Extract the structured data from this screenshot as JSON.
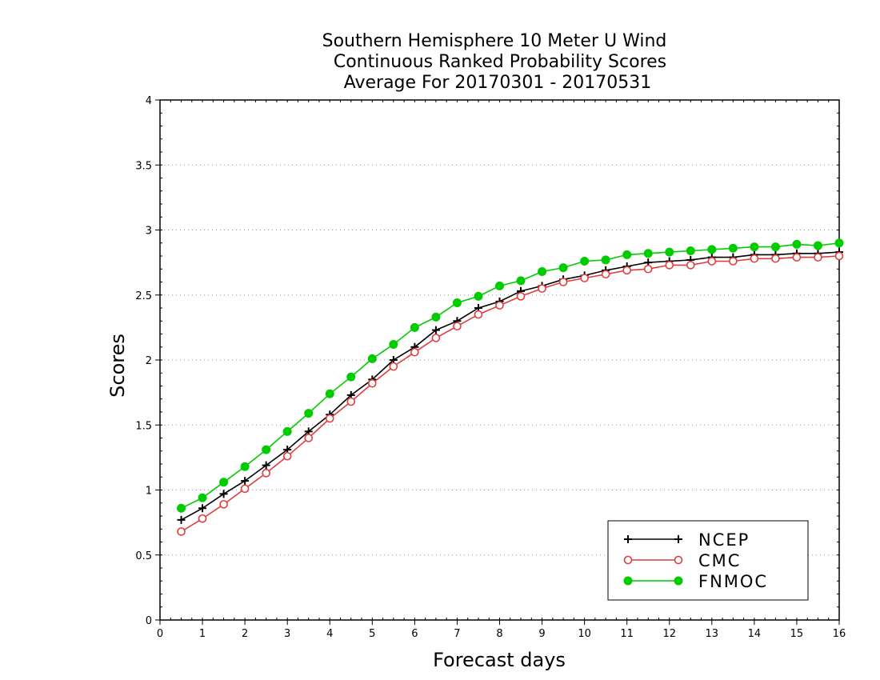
{
  "chart_data": {
    "type": "line",
    "title_lines": [
      "Southern Hemisphere 10 Meter U Wind",
      "Continuous Ranked Probability Scores",
      "Average For 20170301 - 20170531"
    ],
    "xlabel": "Forecast days",
    "ylabel": "Scores",
    "xlim": [
      0,
      16
    ],
    "ylim": [
      0,
      4
    ],
    "x_ticks": [
      "0",
      "1",
      "2",
      "3",
      "4",
      "5",
      "6",
      "7",
      "8",
      "9",
      "10",
      "11",
      "12",
      "13",
      "14",
      "15",
      "16"
    ],
    "y_ticks": [
      "0",
      "0.5",
      "1",
      "1.5",
      "2",
      "2.5",
      "3",
      "3.5",
      "4"
    ],
    "grid": "horizontal-dotted",
    "legend_position": "bottom-right",
    "x": [
      0.5,
      1,
      1.5,
      2,
      2.5,
      3,
      3.5,
      4,
      4.5,
      5,
      5.5,
      6,
      6.5,
      7,
      7.5,
      8,
      8.5,
      9,
      9.5,
      10,
      10.5,
      11,
      11.5,
      12,
      12.5,
      13,
      13.5,
      14,
      14.5,
      15,
      15.5,
      16
    ],
    "series": [
      {
        "name": "NCEP",
        "color": "#000000",
        "marker": "plus",
        "values": [
          0.77,
          0.86,
          0.97,
          1.07,
          1.19,
          1.31,
          1.45,
          1.58,
          1.73,
          1.85,
          2.0,
          2.1,
          2.23,
          2.3,
          2.4,
          2.45,
          2.53,
          2.57,
          2.62,
          2.65,
          2.69,
          2.72,
          2.75,
          2.76,
          2.77,
          2.79,
          2.79,
          2.81,
          2.81,
          2.82,
          2.82,
          2.83
        ]
      },
      {
        "name": "CMC",
        "color": "#e03c3c",
        "marker": "open-circle",
        "values": [
          0.68,
          0.78,
          0.89,
          1.01,
          1.13,
          1.26,
          1.4,
          1.55,
          1.68,
          1.82,
          1.95,
          2.06,
          2.17,
          2.26,
          2.35,
          2.42,
          2.49,
          2.55,
          2.6,
          2.63,
          2.66,
          2.69,
          2.7,
          2.73,
          2.73,
          2.76,
          2.76,
          2.78,
          2.78,
          2.79,
          2.79,
          2.8
        ]
      },
      {
        "name": "FNMOC",
        "color": "#00cc00",
        "marker": "filled-circle",
        "values": [
          0.86,
          0.94,
          1.06,
          1.18,
          1.31,
          1.45,
          1.59,
          1.74,
          1.87,
          2.01,
          2.12,
          2.25,
          2.33,
          2.44,
          2.49,
          2.57,
          2.61,
          2.68,
          2.71,
          2.76,
          2.77,
          2.81,
          2.82,
          2.83,
          2.84,
          2.85,
          2.86,
          2.87,
          2.87,
          2.89,
          2.88,
          2.9
        ]
      }
    ]
  }
}
